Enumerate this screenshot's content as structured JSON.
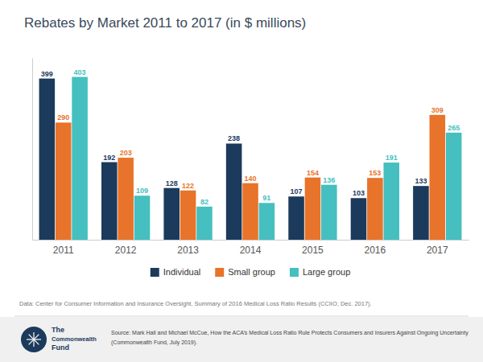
{
  "chart_data": {
    "type": "bar",
    "title": "Rebates by Market 2011 to 2017 (in $ millions)",
    "categories": [
      "2011",
      "2012",
      "2013",
      "2014",
      "2015",
      "2016",
      "2017"
    ],
    "series": [
      {
        "name": "Individual",
        "color": "#1b3a5c",
        "values": [
          399,
          192,
          128,
          238,
          107,
          103,
          133
        ]
      },
      {
        "name": "Small group",
        "color": "#e8732a",
        "values": [
          290,
          203,
          122,
          140,
          154,
          153,
          309
        ]
      },
      {
        "name": "Large group",
        "color": "#45bfbf",
        "values": [
          403,
          109,
          82,
          91,
          136,
          191,
          265
        ]
      }
    ],
    "ylim": [
      0,
      450
    ],
    "grid": false,
    "legend": "bottom",
    "data_labels": true,
    "tick_labels": "x",
    "annotations": [
      "Data: Center for Consumer Information and Insurance Oversight, Summary of 2016 Medical Loss Ratio Results (CCIIO, Dec. 2017).",
      "Source: Mark Hall and Michael McCue, How the ACA’s Medical Loss Ratio Rule Protects Consumers and Insurers Against Ongoing Uncertainty",
      "(Commonwealth Fund, July 2019).",
      "The",
      "Commonwealth",
      "Fund"
    ]
  }
}
